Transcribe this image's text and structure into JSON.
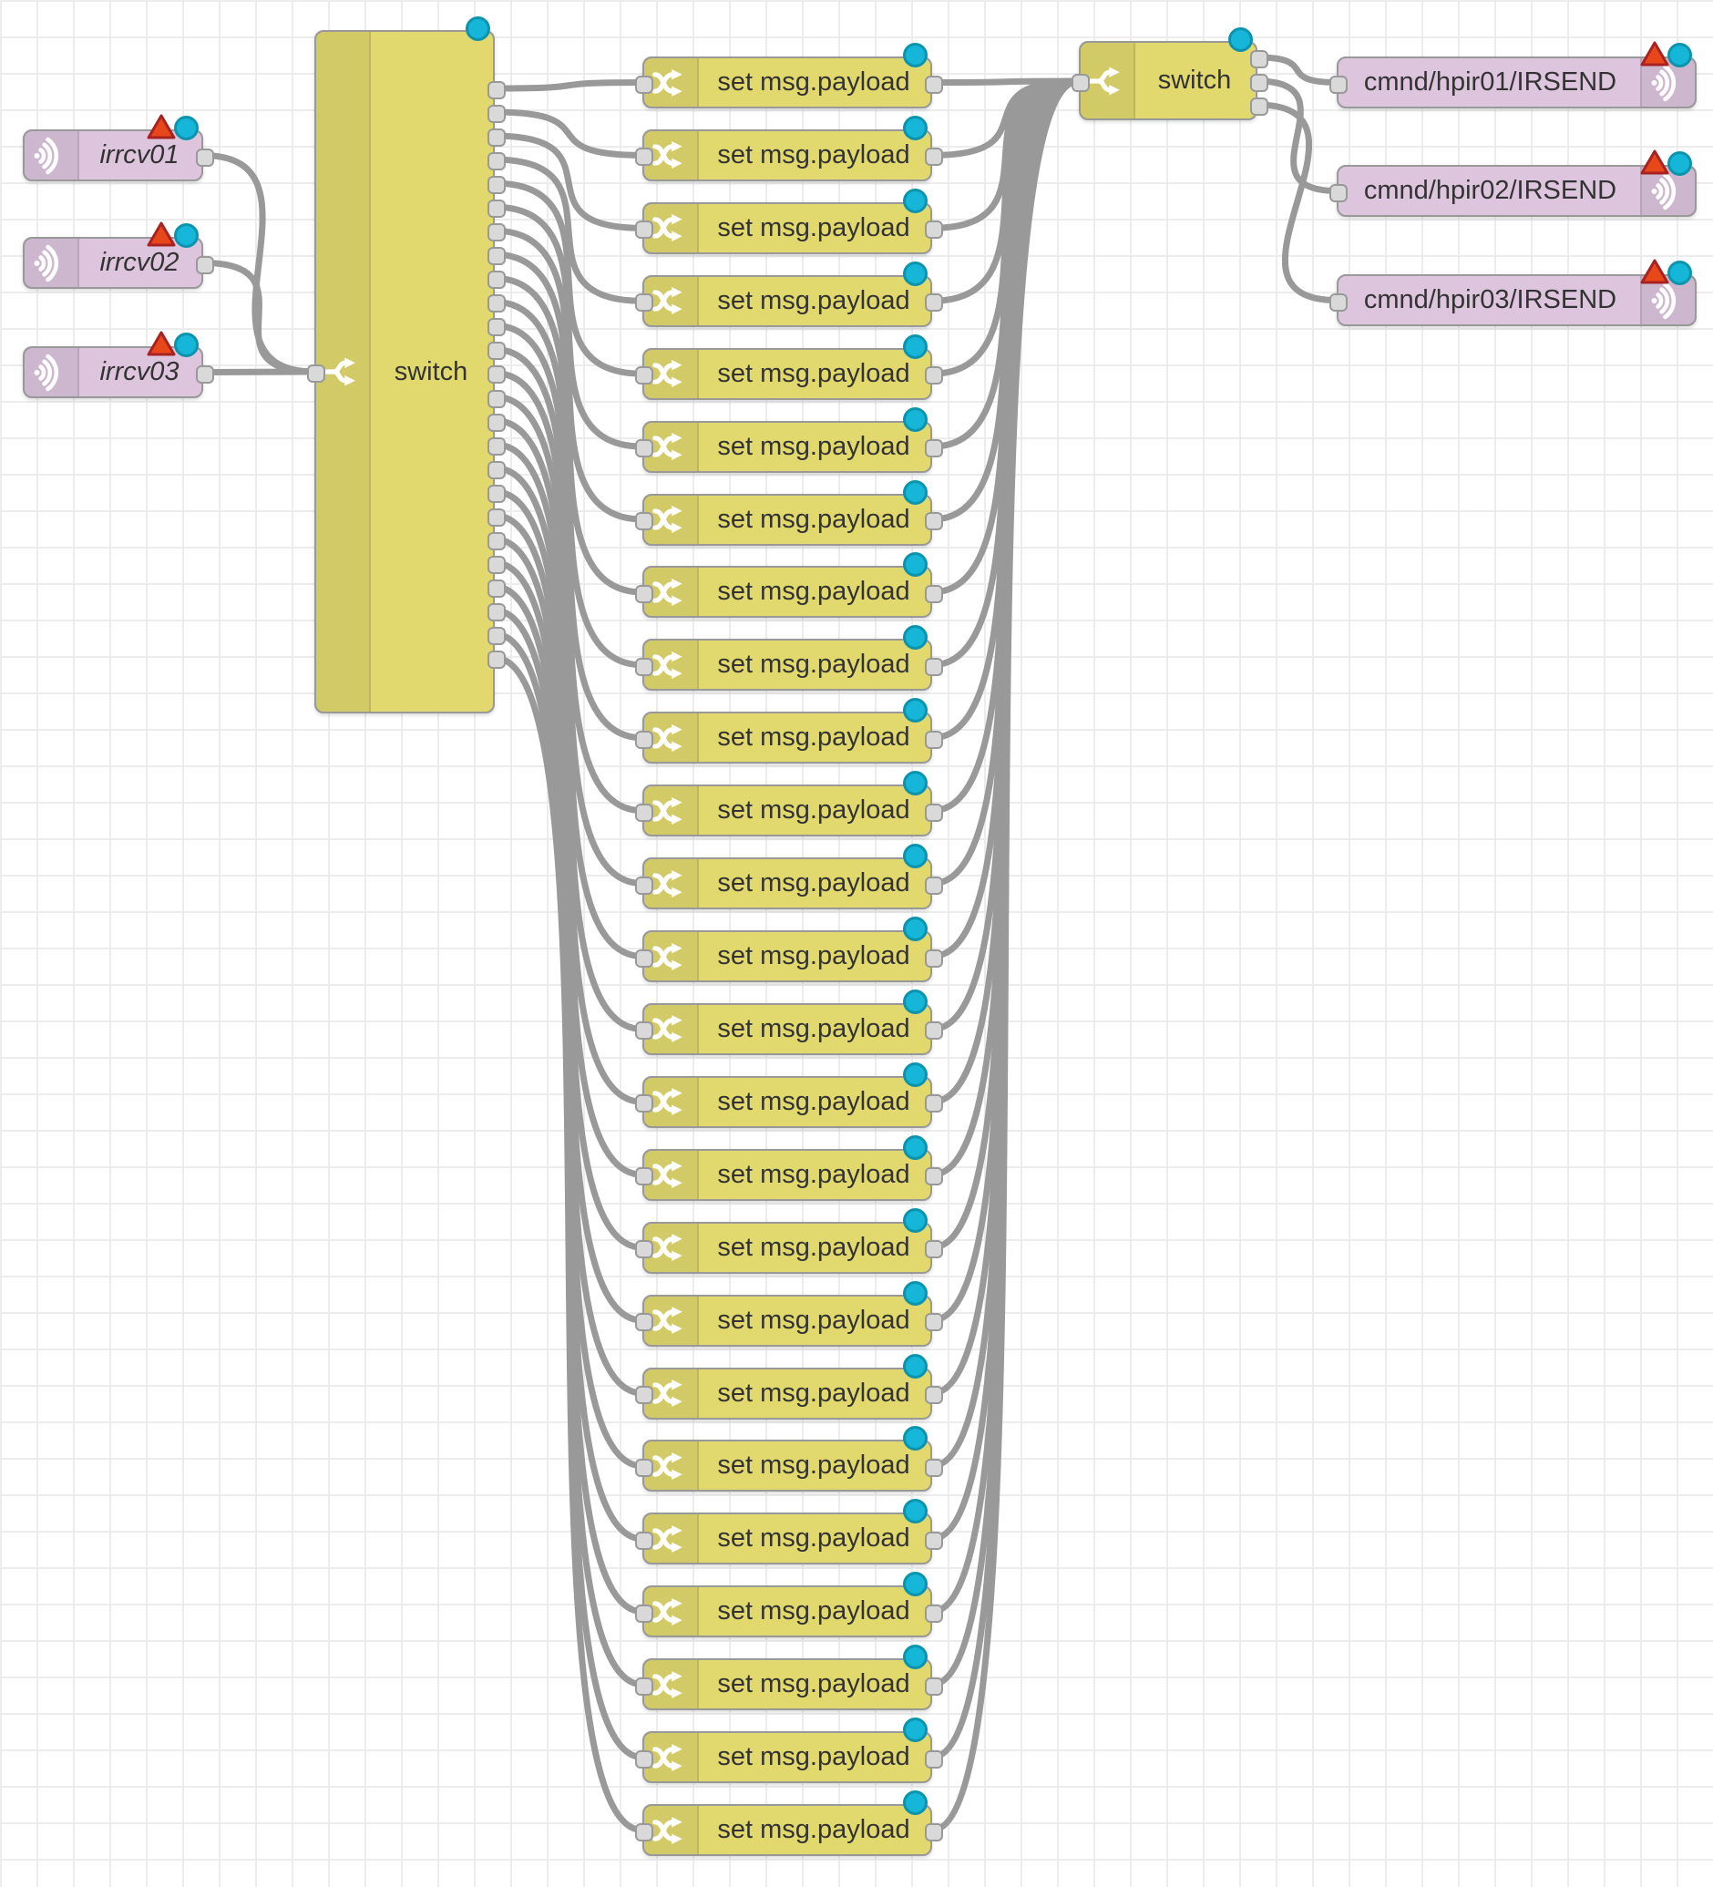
{
  "workspace": {
    "kind": "node-red-flow-canvas"
  },
  "flow": {
    "mqtt_in_nodes": [
      {
        "label": "irrcv01"
      },
      {
        "label": "irrcv02"
      },
      {
        "label": "irrcv03"
      }
    ],
    "main_switch": {
      "label": "switch",
      "outputs": 25
    },
    "change_nodes": [
      {
        "label": "set msg.payload"
      },
      {
        "label": "set msg.payload"
      },
      {
        "label": "set msg.payload"
      },
      {
        "label": "set msg.payload"
      },
      {
        "label": "set msg.payload"
      },
      {
        "label": "set msg.payload"
      },
      {
        "label": "set msg.payload"
      },
      {
        "label": "set msg.payload"
      },
      {
        "label": "set msg.payload"
      },
      {
        "label": "set msg.payload"
      },
      {
        "label": "set msg.payload"
      },
      {
        "label": "set msg.payload"
      },
      {
        "label": "set msg.payload"
      },
      {
        "label": "set msg.payload"
      },
      {
        "label": "set msg.payload"
      },
      {
        "label": "set msg.payload"
      },
      {
        "label": "set msg.payload"
      },
      {
        "label": "set msg.payload"
      },
      {
        "label": "set msg.payload"
      },
      {
        "label": "set msg.payload"
      },
      {
        "label": "set msg.payload"
      },
      {
        "label": "set msg.payload"
      },
      {
        "label": "set msg.payload"
      },
      {
        "label": "set msg.payload"
      },
      {
        "label": "set msg.payload"
      }
    ],
    "out_switch": {
      "label": "switch",
      "outputs": 3
    },
    "mqtt_out_nodes": [
      {
        "label": "cmnd/hpir01/IRSEND"
      },
      {
        "label": "cmnd/hpir02/IRSEND"
      },
      {
        "label": "cmnd/hpir03/IRSEND"
      }
    ]
  },
  "icons": {
    "mqtt": "wifi-signal-icon",
    "switch": "fork-arrows-icon",
    "change": "shuffle-arrows-icon",
    "changed_badge": "blue-dot",
    "error_badge": "red-warning-triangle"
  },
  "colors": {
    "node_yellow": "#e2d96e",
    "node_pink": "#dcc5dd",
    "wire": "#999999",
    "grid": "#ececec",
    "changed_dot": "#15b6d8",
    "error_triangle": "#e8471a",
    "label_text": "#333333"
  }
}
